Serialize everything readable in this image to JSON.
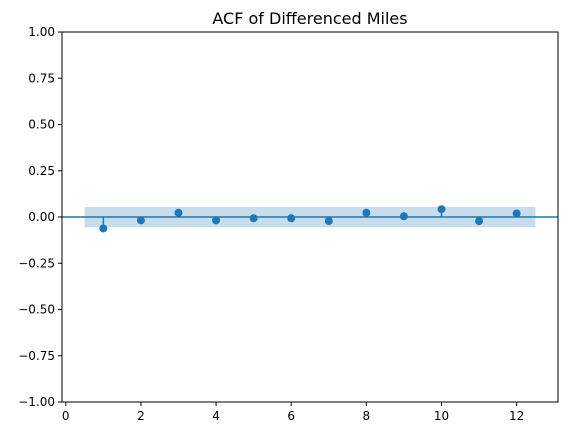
{
  "chart_data": {
    "type": "scatter",
    "title": "ACF of Differenced Miles",
    "xlabel": "",
    "ylabel": "",
    "xlim": [
      -0.1,
      13.1
    ],
    "ylim": [
      -1.0,
      1.0
    ],
    "x_ticks": [
      0,
      2,
      4,
      6,
      8,
      10,
      12
    ],
    "x_tick_labels": [
      "0",
      "2",
      "4",
      "6",
      "8",
      "10",
      "12"
    ],
    "y_ticks": [
      -1.0,
      -0.75,
      -0.5,
      -0.25,
      0.0,
      0.25,
      0.5,
      0.75,
      1.0
    ],
    "y_tick_labels": [
      "−1.00",
      "−0.75",
      "−0.50",
      "−0.25",
      "0.00",
      "0.25",
      "0.50",
      "0.75",
      "1.00"
    ],
    "grid": false,
    "series": [
      {
        "x": [
          1,
          2,
          3,
          4,
          5,
          6,
          7,
          8,
          9,
          10,
          11,
          12
        ],
        "y": [
          -0.062,
          -0.018,
          0.023,
          -0.018,
          -0.007,
          -0.007,
          -0.022,
          0.023,
          0.004,
          0.042,
          -0.022,
          0.019
        ]
      }
    ],
    "confidence_band": {
      "x_range": [
        0.5,
        12.5
      ],
      "lower": -0.055,
      "upper": 0.055
    },
    "zero_line": 0.0,
    "colors": {
      "marker": "#1f77b4",
      "band": "#1f77b4",
      "zero_line": "#1f77b4",
      "axes": "#000000"
    }
  }
}
